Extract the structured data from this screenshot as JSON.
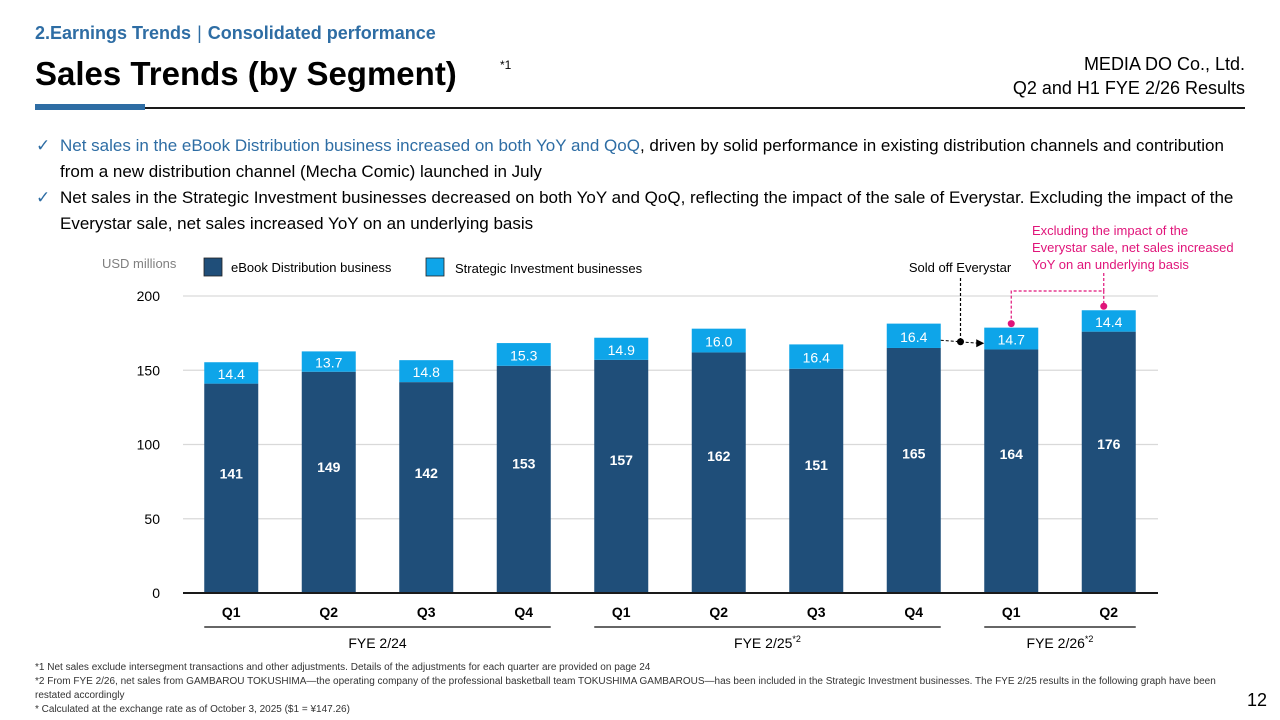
{
  "header": {
    "section": "2.Earnings Trends",
    "separator": "|",
    "subsection": "Consolidated performance",
    "title": "Sales Trends (by Segment)",
    "title_note": "*1",
    "company": "MEDIA DO Co., Ltd.",
    "report": "Q2 and H1 FYE 2/26 Results"
  },
  "bullets": [
    {
      "check": "✓",
      "highlight": "Net sales in the eBook Distribution business increased on both YoY and QoQ",
      "text": ", driven by solid performance in existing distribution channels and contribution from a new distribution channel (Mecha Comic) launched in July"
    },
    {
      "check": "✓",
      "highlight": "",
      "text": "Net sales in the Strategic Investment businesses decreased on both YoY and QoQ, reflecting the impact of the sale of Everystar. Excluding the impact of the Everystar sale, net sales increased YoY on an underlying basis"
    }
  ],
  "colors": {
    "accent": "#2e6da4",
    "ebook": "#1f4e79",
    "strategic": "#0ea5e9",
    "annotation": "#e0157a",
    "grid": "#d9d9d9"
  },
  "chart_data": {
    "type": "bar",
    "stacked": true,
    "unit_label": "USD millions",
    "categories": [
      "Q1",
      "Q2",
      "Q3",
      "Q4",
      "Q1",
      "Q2",
      "Q3",
      "Q4",
      "Q1",
      "Q2"
    ],
    "groups": [
      {
        "label": "FYE 2/24",
        "note": "",
        "start": 0,
        "end": 3
      },
      {
        "label": "FYE 2/25",
        "note": "*2",
        "start": 4,
        "end": 7
      },
      {
        "label": "FYE 2/26",
        "note": "*2",
        "start": 8,
        "end": 9
      }
    ],
    "series": [
      {
        "name": "eBook Distribution business",
        "color": "#1f4e79",
        "values": [
          141,
          149,
          142,
          153,
          157,
          162,
          151,
          165,
          164,
          176
        ]
      },
      {
        "name": "Strategic Investment businesses",
        "color": "#0ea5e9",
        "values": [
          14.4,
          13.7,
          14.8,
          15.3,
          14.9,
          16.0,
          16.4,
          16.4,
          14.7,
          14.4
        ]
      }
    ],
    "series_labels": [
      [
        "141",
        "149",
        "142",
        "153",
        "157",
        "162",
        "151",
        "165",
        "164",
        "176"
      ],
      [
        "14.4",
        "13.7",
        "14.8",
        "15.3",
        "14.9",
        "16.0",
        "16.4",
        "16.4",
        "14.7",
        "14.4"
      ]
    ],
    "yticks": [
      0,
      50,
      100,
      150,
      200
    ],
    "ylim": [
      0,
      200
    ],
    "grid": true,
    "legend_position": "top-left",
    "annotations": {
      "sold_off": {
        "text": "Sold off Everystar",
        "from_index": 7,
        "to_index": 8
      },
      "underlying": {
        "lines": [
          "Excluding the impact of the",
          "Everystar sale, net sales increased",
          "YoY on an underlying basis"
        ],
        "indices": [
          8,
          9
        ]
      }
    }
  },
  "footnotes": [
    "*1 Net sales exclude intersegment transactions and other adjustments. Details of the adjustments for each quarter are provided on page 24",
    "*2 From FYE 2/26, net sales from GAMBAROU TOKUSHIMA—the operating company of the professional basketball team TOKUSHIMA GAMBAROUS—has been included in the Strategic Investment businesses. The FYE 2/25 results in the following graph have been restated accordingly",
    "* Calculated at the exchange rate as of October 3, 2025 ($1 = ¥147.26)"
  ],
  "page_number": "12"
}
